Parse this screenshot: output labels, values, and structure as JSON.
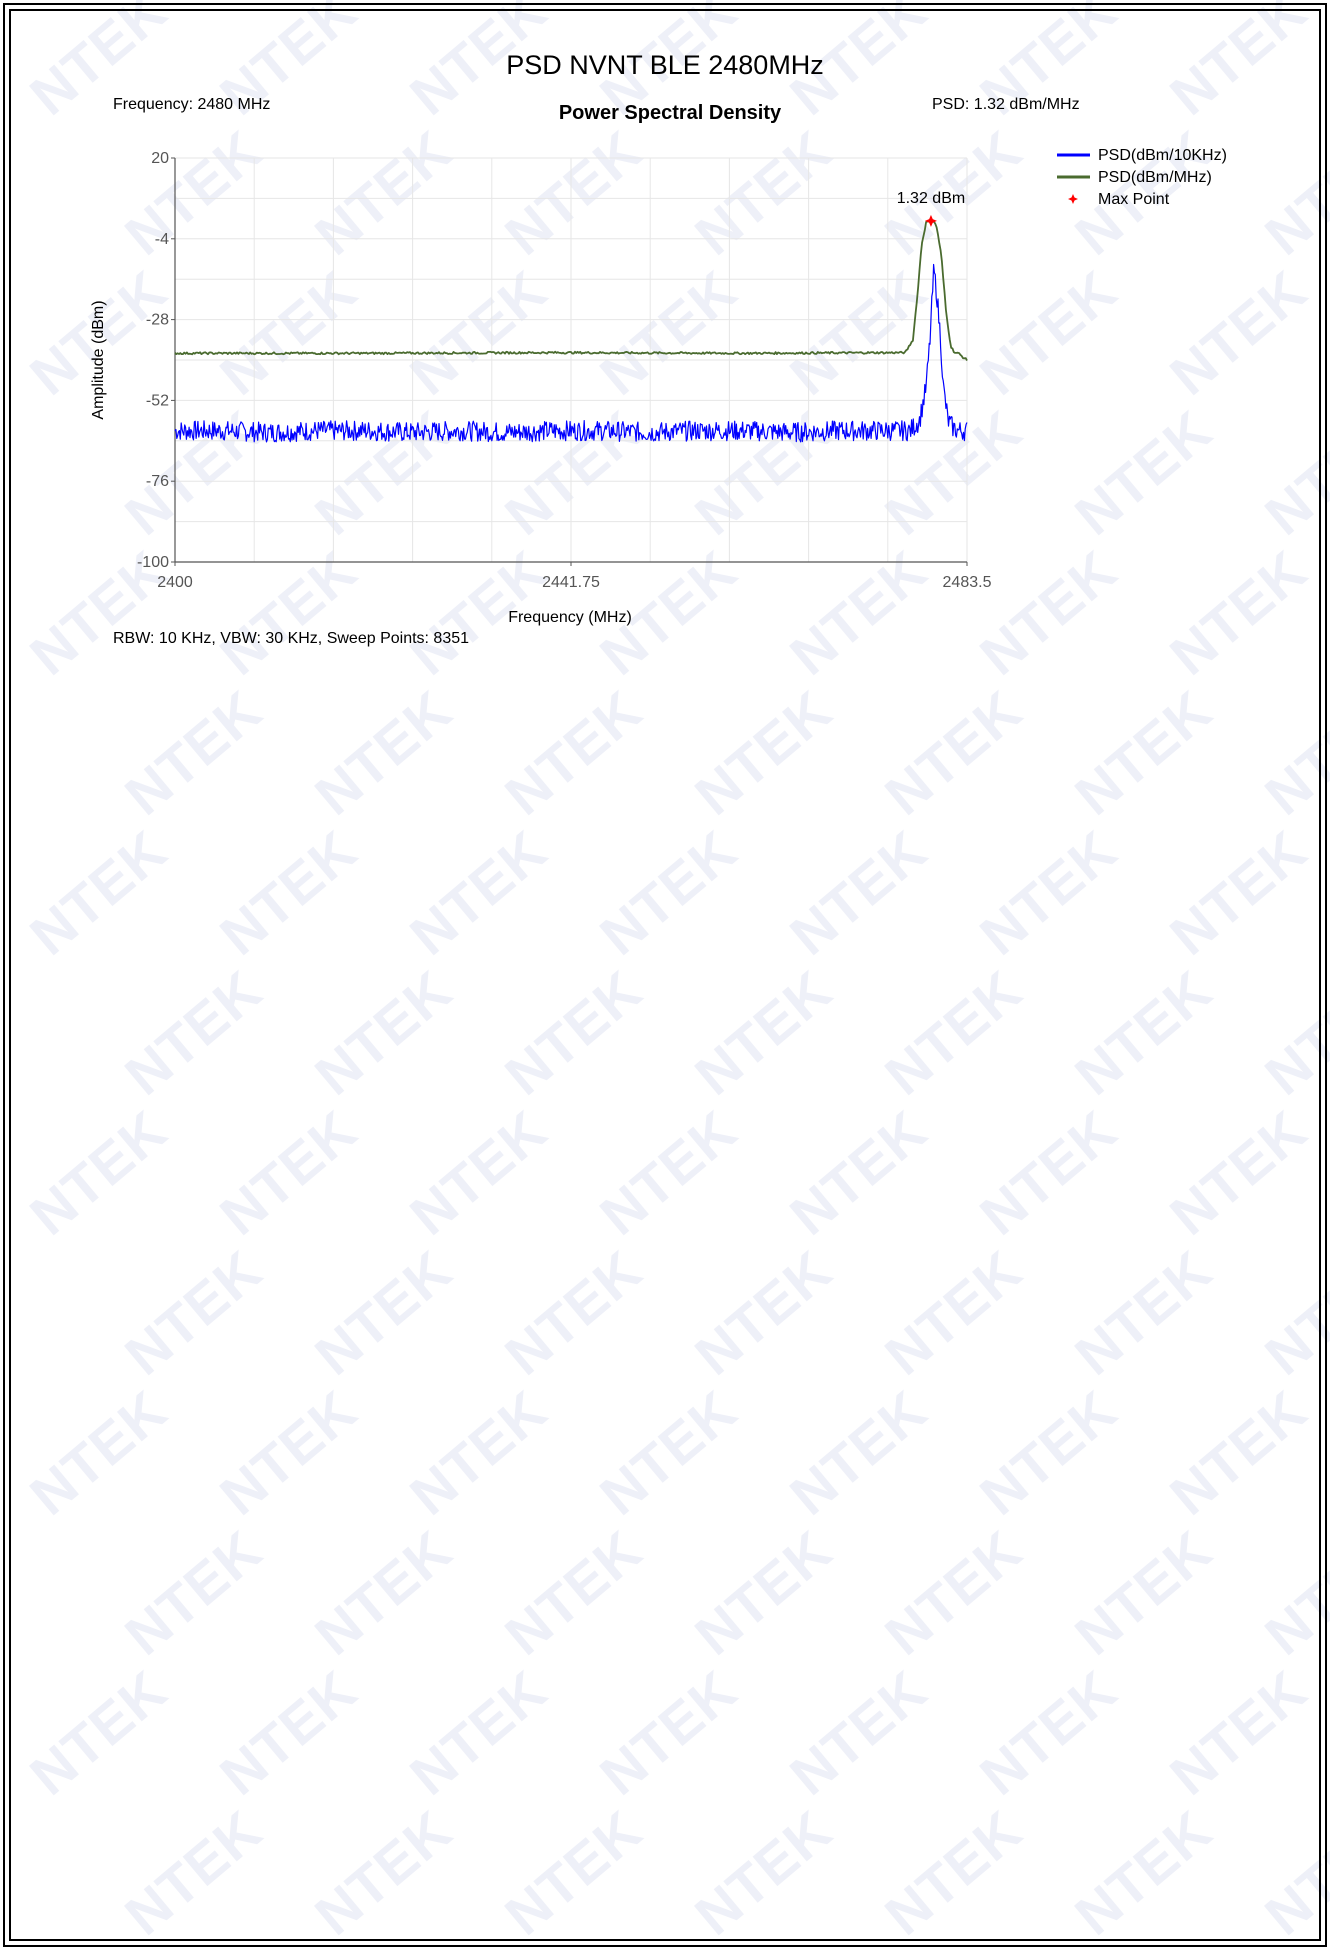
{
  "report": {
    "title": "PSD NVNT BLE 2480MHz",
    "frequency_label": "Frequency: 2480 MHz",
    "psd_label": "PSD: 1.32 dBm/MHz",
    "footer": "RBW: 10 KHz,  VBW: 30 KHz,  Sweep Points: 8351",
    "watermark_text": "NTEK"
  },
  "chart_data": {
    "type": "line",
    "title": "Power Spectral Density",
    "xlabel": "Frequency (MHz)",
    "ylabel": "Amplitude (dBm)",
    "xlim": [
      2400,
      2483.5
    ],
    "ylim": [
      -100,
      20
    ],
    "x_ticks": [
      "2400",
      "2441.75",
      "2483.5"
    ],
    "y_ticks": [
      "20",
      "-4",
      "-28",
      "-52",
      "-76",
      "-100"
    ],
    "grid": true,
    "legend_position": "right",
    "series": [
      {
        "name": "PSD(dBm/10KHz)",
        "color": "#0000ff",
        "x": [
          2400,
          2405,
          2410,
          2415,
          2420,
          2425,
          2430,
          2435,
          2440,
          2445,
          2450,
          2455,
          2460,
          2465,
          2470,
          2475,
          2477.5,
          2478.5,
          2479.2,
          2479.6,
          2480.0,
          2480.3,
          2480.7,
          2481.0,
          2481.5,
          2482.0,
          2482.5,
          2483.0,
          2483.5
        ],
        "values": [
          -61,
          -61,
          -61.5,
          -61,
          -61,
          -61.5,
          -61,
          -61.5,
          -61,
          -61,
          -61.5,
          -61,
          -61,
          -61.5,
          -61,
          -61,
          -61,
          -58,
          -48,
          -34,
          -13,
          -20,
          -33,
          -48,
          -58,
          -60,
          -61,
          -61,
          -61
        ]
      },
      {
        "name": "PSD(dBm/MHz)",
        "color": "#4a6b2f",
        "x": [
          2400,
          2420,
          2440,
          2460,
          2477.0,
          2477.8,
          2478.3,
          2478.7,
          2479.2,
          2479.7,
          2480.0,
          2480.3,
          2480.8,
          2481.3,
          2481.8,
          2482.2,
          2482.6,
          2483.0,
          2483.5
        ],
        "values": [
          -38,
          -38,
          -37.8,
          -38,
          -37.8,
          -34,
          -20,
          -6,
          1,
          1.32,
          1.2,
          -0.5,
          -9,
          -26,
          -36,
          -37.8,
          -38,
          -39,
          -40
        ]
      }
    ],
    "max_point": {
      "name": "Max Point",
      "x": 2479.7,
      "y": 1.32,
      "label": "1.32 dBm",
      "color": "#ff0000"
    }
  }
}
